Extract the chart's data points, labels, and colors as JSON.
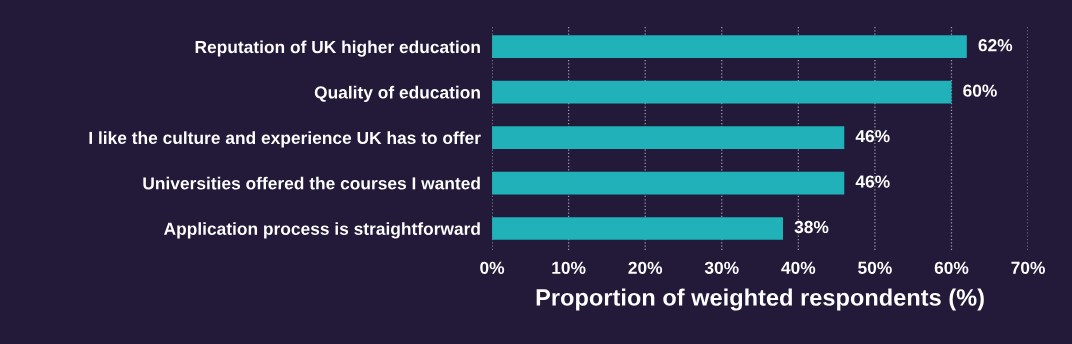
{
  "chart_data": {
    "type": "bar",
    "orientation": "horizontal",
    "xlabel": "Proportion of weighted respondents (%)",
    "categories": [
      "Reputation of UK higher education",
      "Quality of education",
      "I like the culture and experience UK has to offer",
      "Universities offered the courses I wanted",
      "Application process is straightforward"
    ],
    "values": [
      62,
      60,
      46,
      46,
      38
    ],
    "value_labels": [
      "62%",
      "60%",
      "46%",
      "46%",
      "38%"
    ],
    "color": "#20b2b8",
    "xlim": [
      0,
      70
    ],
    "xticks": [
      {
        "value": 0,
        "label": "0%"
      },
      {
        "value": 10,
        "label": "10%"
      },
      {
        "value": 20,
        "label": "20%"
      },
      {
        "value": 30,
        "label": "30%"
      },
      {
        "value": 40,
        "label": "40%"
      },
      {
        "value": 50,
        "label": "50%"
      },
      {
        "value": 60,
        "label": "60%"
      },
      {
        "value": 70,
        "label": "70%"
      }
    ],
    "grid": "x"
  }
}
